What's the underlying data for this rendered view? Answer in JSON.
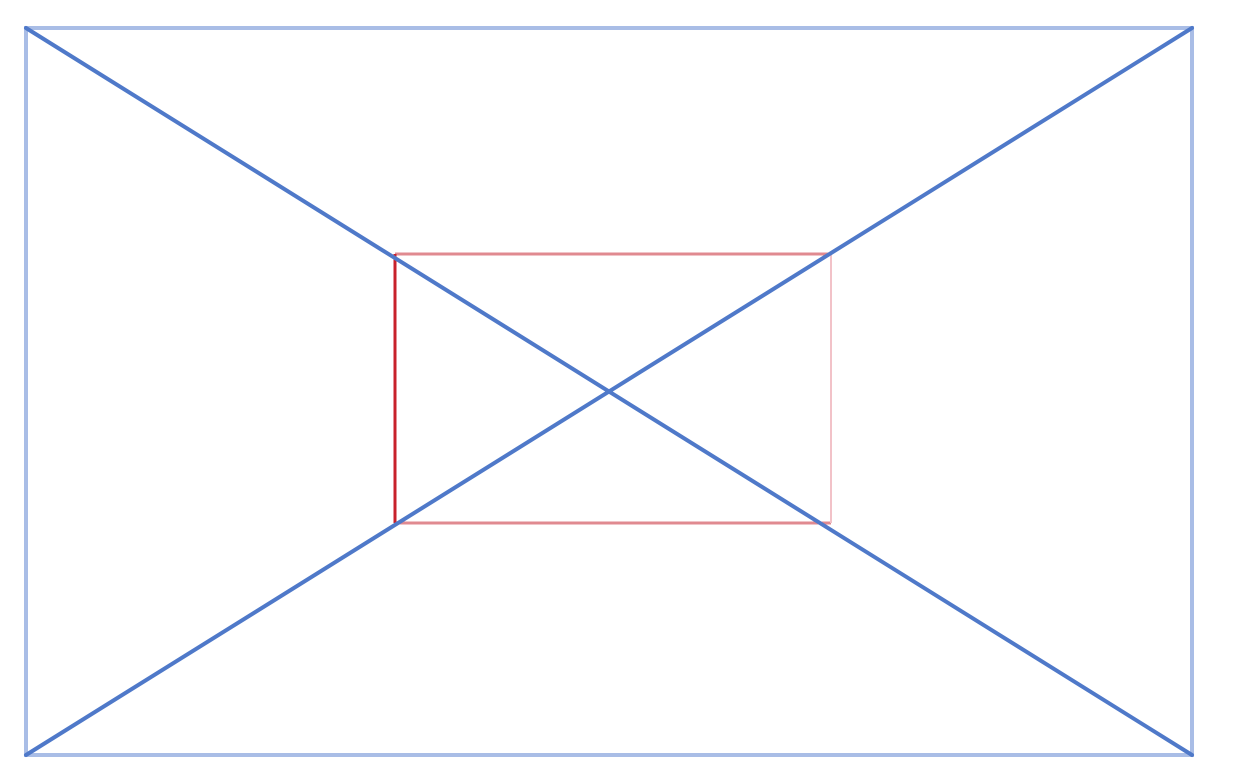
{
  "diagram": {
    "colors": {
      "background": "#ffffff",
      "outer_frame": "#a9bde6",
      "diagonals": "#4f79c9",
      "inner_rect_left": "#c8212b",
      "inner_rect_top_bottom": "#e08a90",
      "inner_rect_right": "#f2c2c8"
    },
    "elements": [
      "outer-frame",
      "diagonal-down",
      "diagonal-up",
      "inner-rect-top",
      "inner-rect-bottom",
      "inner-rect-left",
      "inner-rect-right"
    ]
  }
}
